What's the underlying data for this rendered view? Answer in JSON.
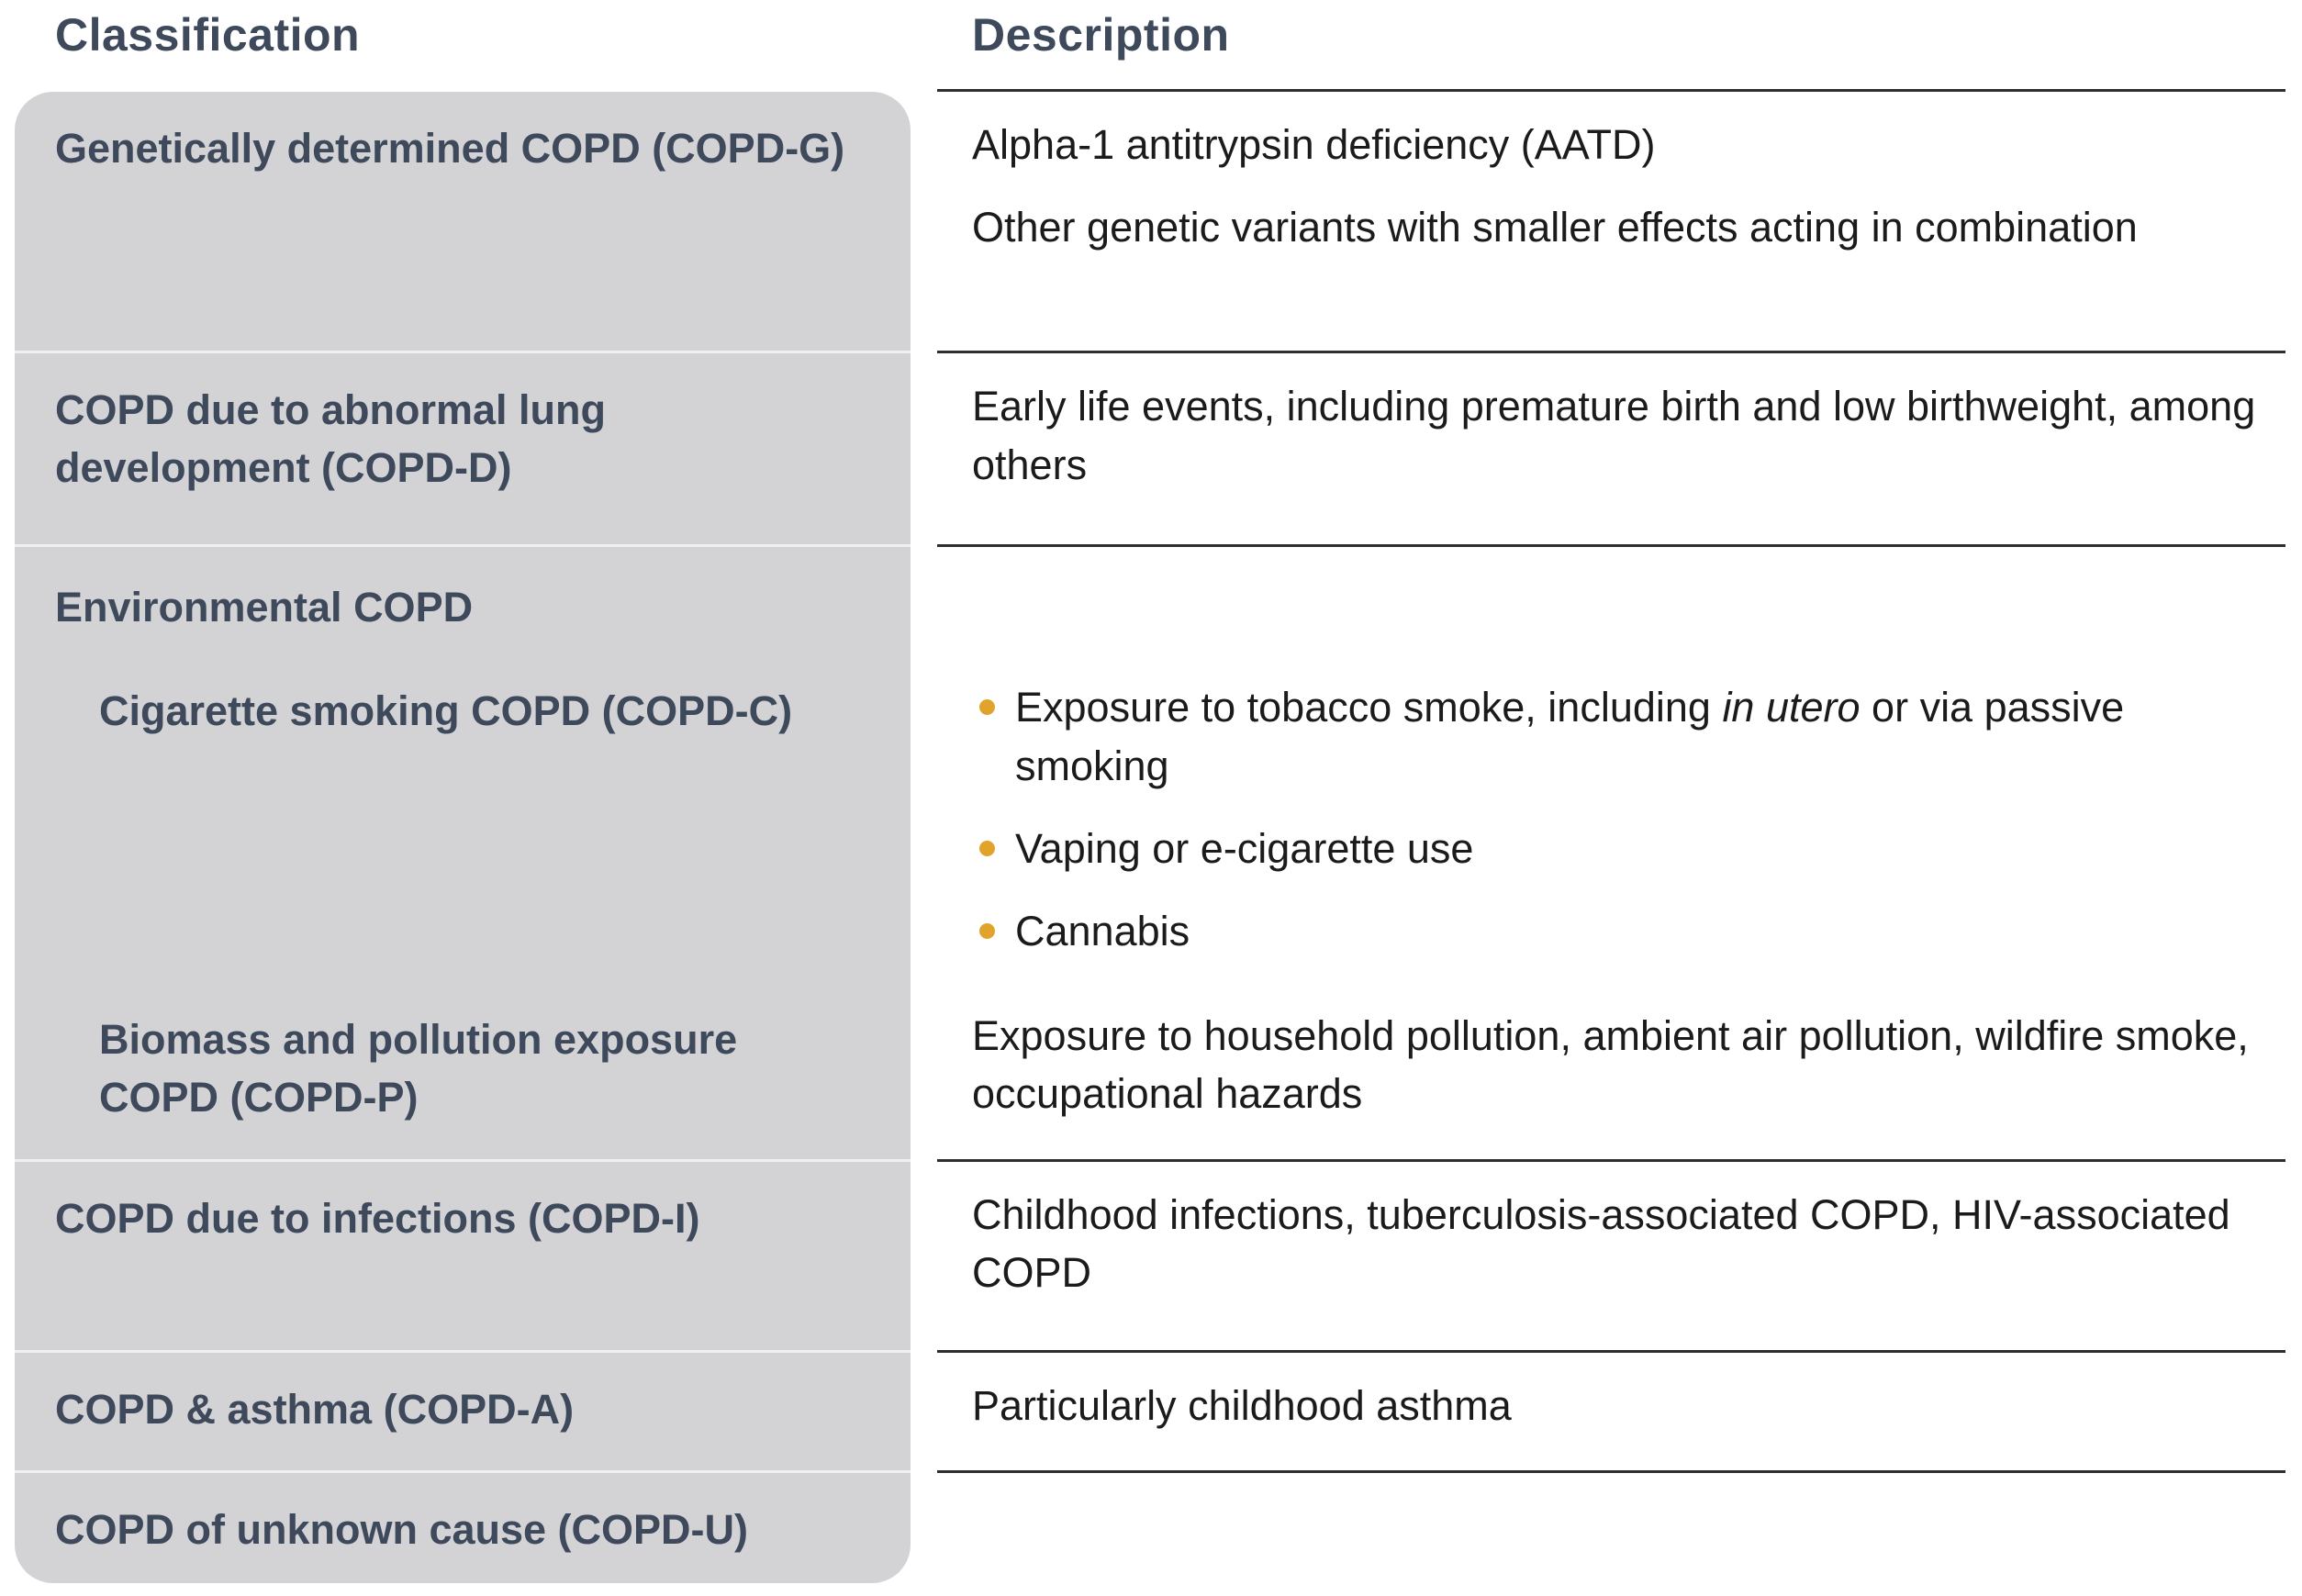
{
  "table": {
    "headers": {
      "classification": "Classification",
      "description": "Description"
    },
    "rows": {
      "genetic": {
        "classification": "Genetically determined COPD (COPD-G)",
        "desc1": "Alpha-1 antitrypsin deficiency (AATD)",
        "desc2": "Other genetic variants with smaller effects acting in combination"
      },
      "development": {
        "classification": "COPD due to abnormal lung development (COPD-D)",
        "desc": "Early life events, including premature birth and low birthweight, among others"
      },
      "environmental": {
        "group_label": "Environmental COPD",
        "cigarette": {
          "classification": "Cigarette smoking COPD (COPD-C)",
          "bullet1_before": "Exposure to tobacco smoke, including ",
          "bullet1_italic": "in utero",
          "bullet1_after": " or via passive smoking",
          "bullet2": "Vaping or e-cigarette use",
          "bullet3": "Cannabis"
        },
        "biomass": {
          "classification": "Biomass and pollution exposure COPD (COPD-P)",
          "desc": "Exposure to household pollution, ambient air pollution, wildfire smoke, occupational hazards"
        }
      },
      "infections": {
        "classification": "COPD due to infections (COPD-I)",
        "desc": "Childhood infections, tuberculosis-associated COPD, HIV-associated COPD"
      },
      "asthma": {
        "classification": "COPD & asthma (COPD-A)",
        "desc": "Particularly childhood asthma"
      },
      "unknown": {
        "classification": "COPD of unknown cause (COPD-U)"
      }
    },
    "colors": {
      "page_bg": "#ffffff",
      "heading_text": "#3e4a5c",
      "body_text": "#1b1b1b",
      "panel_bg": "#d3d3d5",
      "bullet": "#e0a42c",
      "rule": "#2e2e2e"
    }
  }
}
